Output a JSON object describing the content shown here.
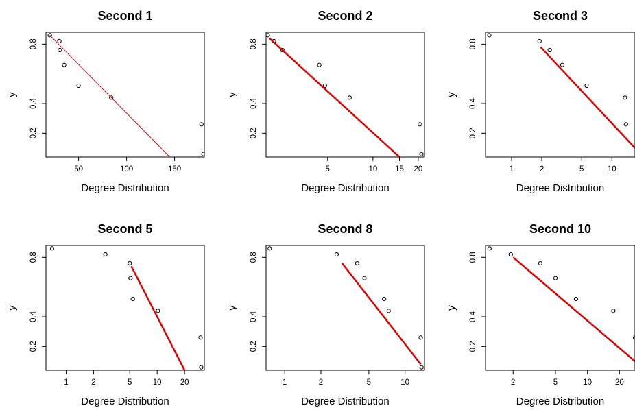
{
  "chart_data": [
    {
      "type": "scatter",
      "title": "Second 1",
      "xlabel": "Degree Distribution",
      "ylabel": "y",
      "xscale": "linear",
      "xlim": [
        16,
        181
      ],
      "ylim": [
        0.04,
        0.88
      ],
      "xticks": [
        50,
        100,
        150
      ],
      "xtick_labels": [
        "50",
        "100",
        "150"
      ],
      "yticks": [
        0.2,
        0.4,
        0.8
      ],
      "ytick_labels": [
        "0.2",
        "0.4",
        "0.8"
      ],
      "points": [
        [
          20,
          0.86
        ],
        [
          30,
          0.82
        ],
        [
          30.5,
          0.76
        ],
        [
          35,
          0.66
        ],
        [
          50,
          0.52
        ],
        [
          84,
          0.44
        ],
        [
          178,
          0.26
        ],
        [
          180,
          0.06
        ]
      ],
      "fit_line": [
        [
          20,
          0.86
        ],
        [
          145,
          0.04
        ]
      ],
      "line_color": "#e00000",
      "line_width": 1
    },
    {
      "type": "scatter",
      "title": "Second 2",
      "xlabel": "Degree Distribution",
      "ylabel": "y",
      "xscale": "log",
      "xlim": [
        1.95,
        22
      ],
      "ylim": [
        0.04,
        0.88
      ],
      "xticks": [
        5,
        10,
        15,
        20
      ],
      "xtick_labels": [
        "5",
        "10",
        "15",
        "20"
      ],
      "yticks": [
        0.2,
        0.4,
        0.8
      ],
      "ytick_labels": [
        "0.2",
        "0.4",
        "0.8"
      ],
      "points": [
        [
          2.0,
          0.86
        ],
        [
          2.2,
          0.82
        ],
        [
          2.5,
          0.76
        ],
        [
          4.4,
          0.66
        ],
        [
          4.8,
          0.52
        ],
        [
          7.0,
          0.44
        ],
        [
          20.5,
          0.26
        ],
        [
          21,
          0.06
        ]
      ],
      "fit_line": [
        [
          2.05,
          0.84
        ],
        [
          15,
          0.04
        ]
      ],
      "line_color": "#e00000",
      "line_width": 2.5
    },
    {
      "type": "scatter",
      "title": "Second 3",
      "xlabel": "Degree Distribution",
      "ylabel": "y",
      "xscale": "log",
      "xlim": [
        0.55,
        17
      ],
      "ylim": [
        0.04,
        0.88
      ],
      "xticks": [
        1,
        2,
        5,
        10
      ],
      "xtick_labels": [
        "1",
        "2",
        "5",
        "10"
      ],
      "yticks": [
        0.2,
        0.4,
        0.8
      ],
      "ytick_labels": [
        "0.2",
        "0.4",
        "0.8"
      ],
      "points": [
        [
          0.6,
          0.86
        ],
        [
          1.9,
          0.82
        ],
        [
          2.4,
          0.76
        ],
        [
          3.2,
          0.66
        ],
        [
          5.6,
          0.52
        ],
        [
          13.5,
          0.44
        ],
        [
          13.8,
          0.26
        ]
      ],
      "fit_line": [
        [
          1.95,
          0.78
        ],
        [
          17,
          0.1
        ]
      ],
      "line_color": "#e00000",
      "line_width": 2.5
    },
    {
      "type": "scatter",
      "title": "Second 5",
      "xlabel": "Degree Distribution",
      "ylabel": "y",
      "xscale": "log",
      "xlim": [
        0.6,
        33
      ],
      "ylim": [
        0.04,
        0.88
      ],
      "xticks": [
        1,
        2,
        5,
        10,
        20
      ],
      "xtick_labels": [
        "1",
        "2",
        "5",
        "10",
        "20"
      ],
      "yticks": [
        0.2,
        0.4,
        0.8
      ],
      "ytick_labels": [
        "0.2",
        "0.4",
        "0.8"
      ],
      "points": [
        [
          0.7,
          0.86
        ],
        [
          2.7,
          0.82
        ],
        [
          5.0,
          0.76
        ],
        [
          5.1,
          0.66
        ],
        [
          5.4,
          0.52
        ],
        [
          10.2,
          0.44
        ],
        [
          30,
          0.26
        ],
        [
          30.5,
          0.06
        ]
      ],
      "fit_line": [
        [
          5.2,
          0.74
        ],
        [
          20,
          0.04
        ]
      ],
      "line_color": "#e00000",
      "line_width": 2.5
    },
    {
      "type": "scatter",
      "title": "Second 8",
      "xlabel": "Degree Distribution",
      "ylabel": "y",
      "xscale": "log",
      "xlim": [
        0.7,
        14.5
      ],
      "ylim": [
        0.04,
        0.88
      ],
      "xticks": [
        1,
        2,
        5,
        10
      ],
      "xtick_labels": [
        "1",
        "2",
        "5",
        "10"
      ],
      "yticks": [
        0.2,
        0.4,
        0.8
      ],
      "ytick_labels": [
        "0.2",
        "0.4",
        "0.8"
      ],
      "points": [
        [
          0.75,
          0.86
        ],
        [
          2.7,
          0.82
        ],
        [
          4.0,
          0.76
        ],
        [
          4.6,
          0.66
        ],
        [
          6.7,
          0.52
        ],
        [
          7.3,
          0.44
        ],
        [
          13.5,
          0.26
        ],
        [
          13.7,
          0.06
        ]
      ],
      "fit_line": [
        [
          3.0,
          0.76
        ],
        [
          13.5,
          0.08
        ]
      ],
      "line_color": "#e00000",
      "line_width": 2.5
    },
    {
      "type": "scatter",
      "title": "Second 10",
      "xlabel": "Degree Distribution",
      "ylabel": "y",
      "xscale": "log",
      "xlim": [
        1.1,
        28
      ],
      "ylim": [
        0.04,
        0.88
      ],
      "xticks": [
        2,
        5,
        10,
        20
      ],
      "xtick_labels": [
        "2",
        "5",
        "10",
        "20"
      ],
      "yticks": [
        0.2,
        0.4,
        0.8
      ],
      "ytick_labels": [
        "0.2",
        "0.4",
        "0.8"
      ],
      "points": [
        [
          1.2,
          0.86
        ],
        [
          1.9,
          0.82
        ],
        [
          3.6,
          0.76
        ],
        [
          5.0,
          0.66
        ],
        [
          7.8,
          0.52
        ],
        [
          17.5,
          0.44
        ],
        [
          28,
          0.26
        ]
      ],
      "fit_line": [
        [
          2.0,
          0.8
        ],
        [
          28,
          0.1
        ]
      ],
      "line_color": "#e00000",
      "line_width": 2.5
    }
  ]
}
